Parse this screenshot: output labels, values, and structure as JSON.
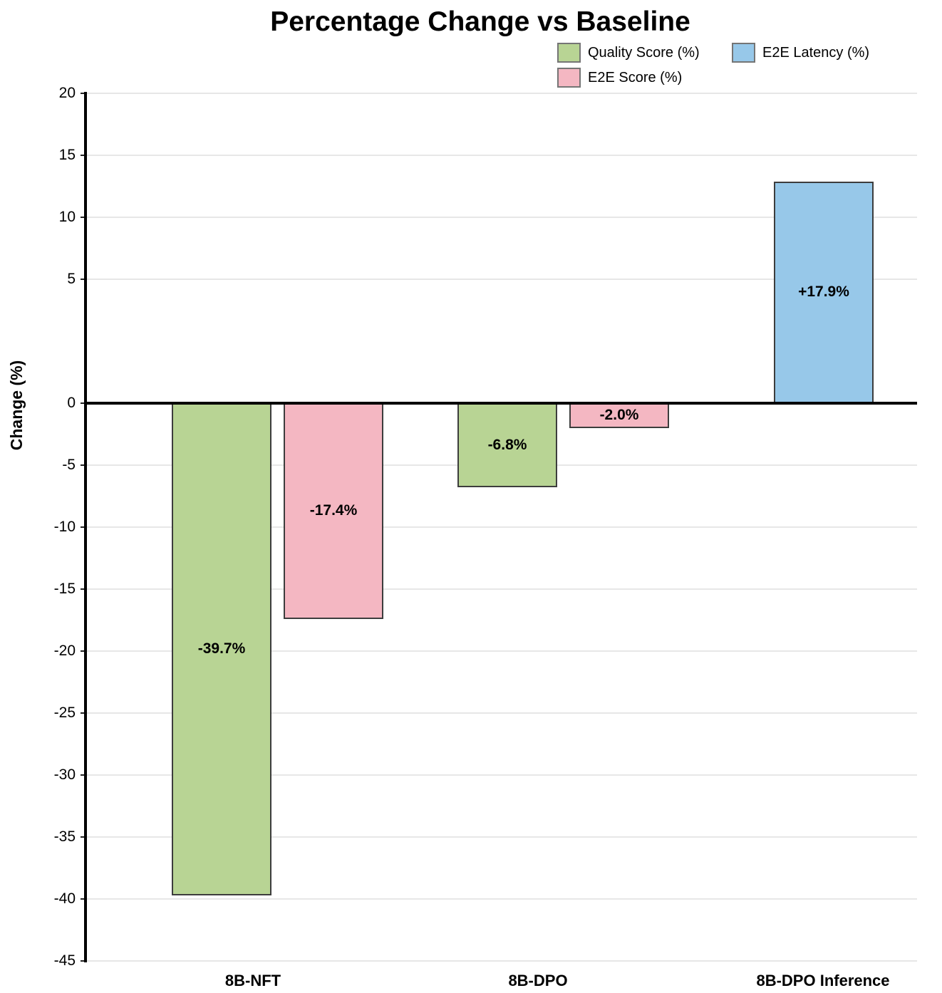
{
  "chart_data": {
    "type": "bar",
    "title": "Percentage Change vs Baseline",
    "ylabel": "Change (%)",
    "xlabel": "",
    "ylim": [
      -45,
      20
    ],
    "yticks": [
      20,
      15,
      10,
      5,
      0,
      -5,
      -10,
      -15,
      -20,
      -25,
      -30,
      -35,
      -40,
      -45
    ],
    "grid": true,
    "legend_position": "top-right",
    "categories": [
      "8B-NFT",
      "8B-DPO",
      "8B-DPO Inference"
    ],
    "series": [
      {
        "name": "Quality Score (%)",
        "color": "#b8d494",
        "values": [
          -39.7,
          -6.8,
          null
        ],
        "labels": [
          "-39.7%",
          "-6.8%",
          null
        ]
      },
      {
        "name": "E2E Score (%)",
        "color": "#f4b7c2",
        "values": [
          -17.4,
          -2.0,
          null
        ],
        "labels": [
          "-17.4%",
          "-2.0%",
          null
        ]
      },
      {
        "name": "E2E Latency (%)",
        "color": "#97c8e9",
        "values": [
          null,
          null,
          17.9
        ],
        "labels": [
          null,
          null,
          "+17.9%"
        ]
      }
    ]
  },
  "legend": {
    "items": [
      {
        "label": "Quality Score (%)",
        "color": "#b8d494"
      },
      {
        "label": "E2E Latency (%)",
        "color": "#97c8e9"
      },
      {
        "label": "E2E Score (%)",
        "color": "#f4b7c2"
      }
    ]
  },
  "colors": {
    "bar_border": "#3d3d3d",
    "gridline": "#e7e7e7",
    "axis": "#000000",
    "zero_line": "#000000",
    "background": "#ffffff",
    "text": "#000000"
  }
}
